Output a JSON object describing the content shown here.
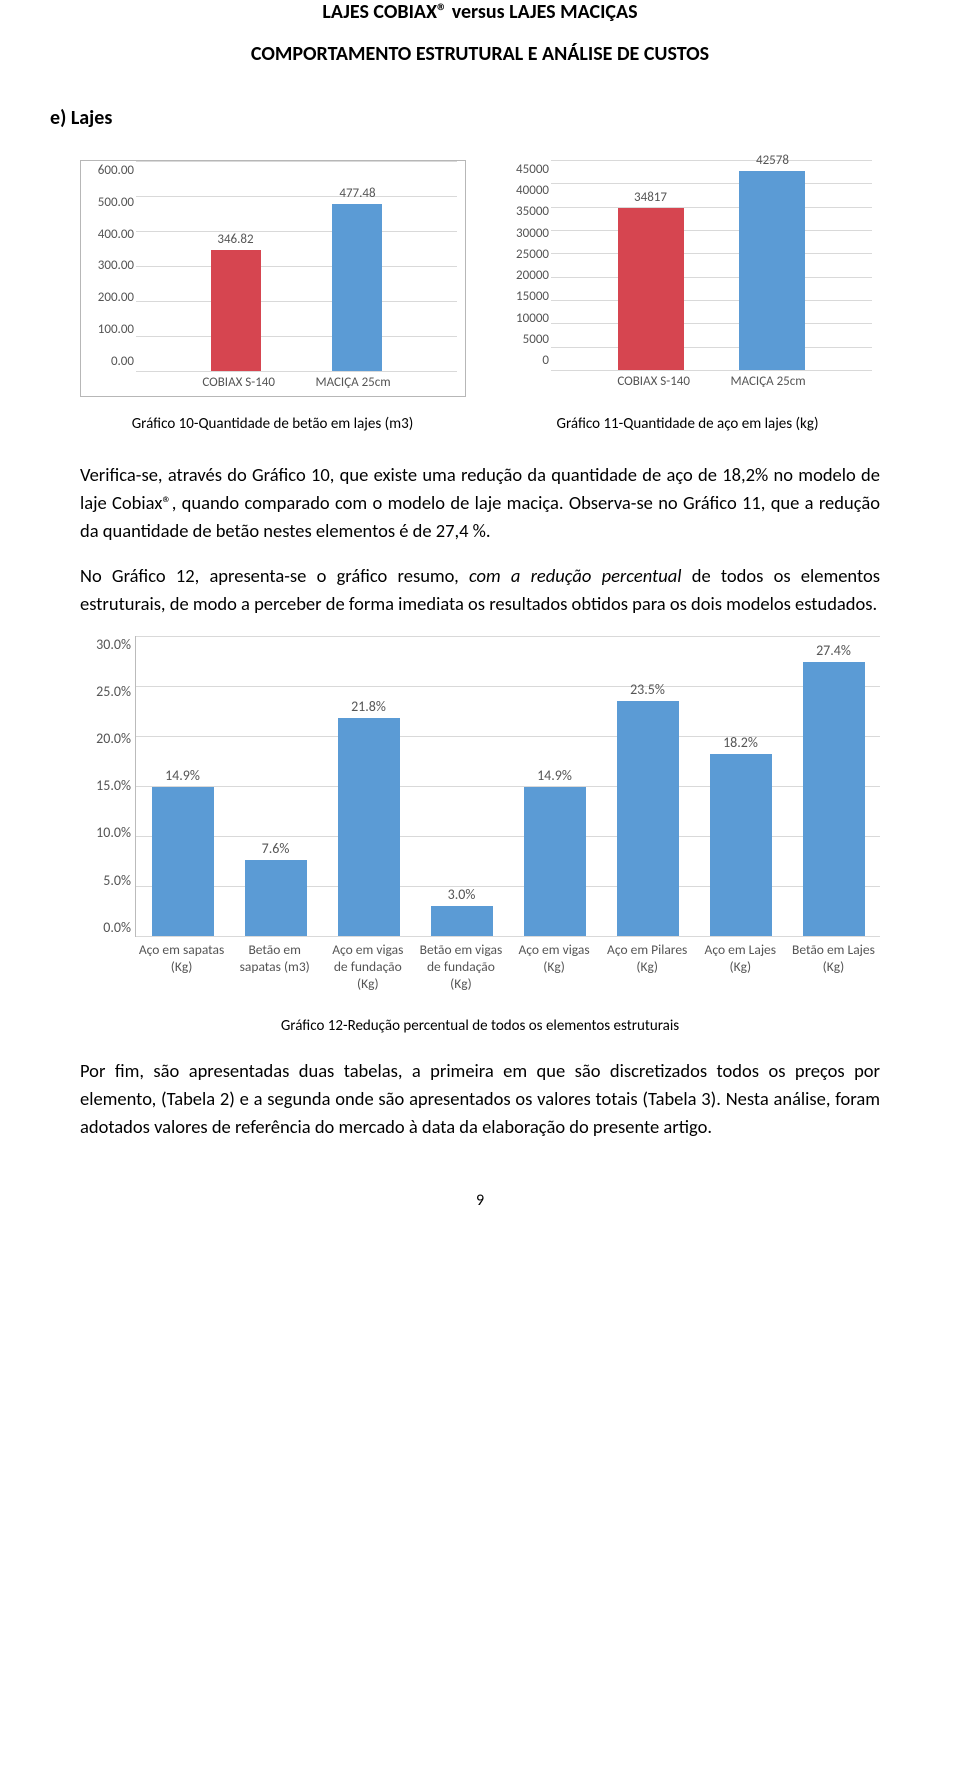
{
  "header": {
    "title1": "LAJES COBIAX® versus LAJES MACIÇAS",
    "title2": "COMPORTAMENTO ESTRUTURAL E ANÁLISE DE CUSTOS"
  },
  "section_label": "e)  Lajes",
  "chart10": {
    "type": "bar",
    "yticks": [
      "600.00",
      "500.00",
      "400.00",
      "300.00",
      "200.00",
      "100.00",
      "0.00"
    ],
    "ymax": 600,
    "categories": [
      "COBIAX S-140",
      "MACIÇA 25cm"
    ],
    "values": [
      346.82,
      477.48
    ],
    "value_labels": [
      "346.82",
      "477.48"
    ],
    "bar_colors": [
      "#d64550",
      "#5b9bd5"
    ],
    "grid_color": "#d9d9d9",
    "text_color": "#555555",
    "caption": "Gráfico 10-Quantidade de betão em lajes (m3)"
  },
  "chart11": {
    "type": "bar",
    "yticks": [
      "45000",
      "40000",
      "35000",
      "30000",
      "25000",
      "20000",
      "15000",
      "10000",
      "5000",
      "0"
    ],
    "ymax": 45000,
    "categories": [
      "COBIAX S-140",
      "MACIÇA 25cm"
    ],
    "values": [
      34817,
      42578
    ],
    "value_labels": [
      "34817",
      "42578"
    ],
    "bar_colors": [
      "#d64550",
      "#5b9bd5"
    ],
    "grid_color": "#d9d9d9",
    "text_color": "#555555",
    "caption": "Gráfico 11-Quantidade de aço em lajes (kg)"
  },
  "para1": "Verifica-se, através do Gráfico 10, que existe uma redução da quantidade de aço de 18,2% no modelo de laje Cobiax®, quando comparado com o modelo de laje maciça. Observa-se no Gráfico 11, que a redução da quantidade de betão nestes elementos é de 27,4 %.",
  "para2_a": "No Gráfico 12, apresenta-se o gráfico resumo, ",
  "para2_i": "com a redução percentual",
  "para2_b": " de todos os elementos estruturais, de modo a perceber de forma imediata os resultados obtidos para os dois modelos estudados.",
  "chart12": {
    "type": "bar",
    "yticks": [
      "30.0%",
      "25.0%",
      "20.0%",
      "15.0%",
      "10.0%",
      "5.0%",
      "0.0%"
    ],
    "ymax": 30,
    "bar_color": "#5b9bd5",
    "grid_color": "#d9d9d9",
    "columns": [
      {
        "label": "Aço em sapatas (Kg)",
        "value": 14.9,
        "vlabel": "14.9%"
      },
      {
        "label": "Betão em sapatas (m3)",
        "value": 7.6,
        "vlabel": "7.6%"
      },
      {
        "label": "Aço em vigas de fundação (Kg)",
        "value": 21.8,
        "vlabel": "21.8%"
      },
      {
        "label": "Betão em vigas de fundação (Kg)",
        "value": 3.0,
        "vlabel": "3.0%"
      },
      {
        "label": "Aço em vigas (Kg)",
        "value": 14.9,
        "vlabel": "14.9%"
      },
      {
        "label": "Aço em Pilares (Kg)",
        "value": 23.5,
        "vlabel": "23.5%"
      },
      {
        "label": "Aço em Lajes (Kg)",
        "value": 18.2,
        "vlabel": "18.2%"
      },
      {
        "label": "Betão em Lajes (Kg)",
        "value": 27.4,
        "vlabel": "27.4%"
      }
    ],
    "caption": "Gráfico 12-Redução percentual de todos os elementos estruturais"
  },
  "para3": "Por fim, são apresentadas duas tabelas, a primeira em que são discretizados todos os preços por elemento, (Tabela 2) e a segunda onde são apresentados os valores totais (Tabela 3). Nesta análise, foram adotados valores de referência do mercado à data da elaboração do presente artigo.",
  "page_number": "9"
}
